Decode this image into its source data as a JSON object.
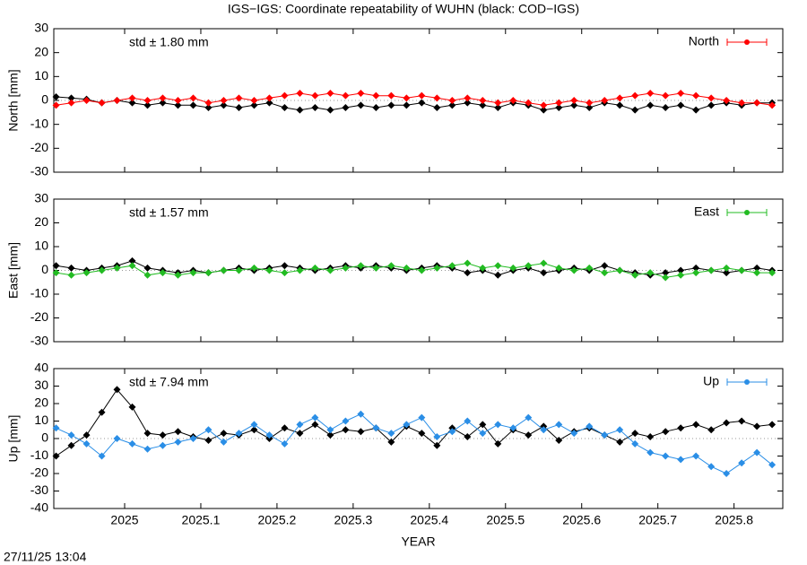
{
  "title": "IGS−IGS: Coordinate repeatability of WUHN (black: COD−IGS)",
  "footer": "27/11/25 13:04",
  "chart_data": [
    {
      "type": "line",
      "ylabel": "North [mm]",
      "annotation": "std ± 1.80 mm",
      "xlim": [
        2024.907,
        2025.864
      ],
      "xticks": [
        2025,
        2025.1,
        2025.2,
        2025.3,
        2025.4,
        2025.5,
        2025.6,
        2025.7,
        2025.8
      ],
      "ylim": [
        -30,
        30
      ],
      "yticks": [
        -30,
        -20,
        -10,
        0,
        10,
        20,
        30
      ],
      "x": [
        2024.91,
        2024.93,
        2024.95,
        2024.97,
        2024.99,
        2025.01,
        2025.03,
        2025.05,
        2025.07,
        2025.09,
        2025.11,
        2025.13,
        2025.15,
        2025.17,
        2025.19,
        2025.21,
        2025.23,
        2025.25,
        2025.27,
        2025.29,
        2025.31,
        2025.33,
        2025.35,
        2025.37,
        2025.39,
        2025.41,
        2025.43,
        2025.45,
        2025.47,
        2025.49,
        2025.51,
        2025.53,
        2025.55,
        2025.57,
        2025.59,
        2025.61,
        2025.63,
        2025.65,
        2025.67,
        2025.69,
        2025.71,
        2025.73,
        2025.75,
        2025.77,
        2025.79,
        2025.81,
        2025.83,
        2025.85
      ],
      "series": [
        {
          "color": "#000000",
          "values": [
            1.5,
            1,
            0.5,
            -1,
            0,
            -1,
            -2,
            -1,
            -2,
            -2,
            -3,
            -2,
            -3,
            -2,
            -1,
            -3,
            -4,
            -3,
            -4,
            -3,
            -2,
            -3,
            -2,
            -2,
            -1,
            -3,
            -2,
            -1,
            -2,
            -3,
            -1,
            -2,
            -4,
            -3,
            -2,
            -3,
            -1,
            -2,
            -4,
            -2,
            -3,
            -2,
            -4,
            -2,
            -1,
            -2,
            -1,
            -1
          ]
        },
        {
          "name": "North",
          "color": "#ff0000",
          "values": [
            -2,
            -1,
            0,
            -1,
            0,
            1,
            0,
            1,
            0,
            1,
            -1,
            0,
            1,
            0,
            1,
            2,
            3,
            2,
            3,
            2,
            3,
            2,
            2,
            1,
            2,
            1,
            0,
            1,
            0,
            -1,
            0,
            -1,
            -2,
            -1,
            0,
            -1,
            0,
            1,
            2,
            3,
            2,
            3,
            2,
            1,
            0,
            -1,
            -1,
            -2
          ]
        }
      ]
    },
    {
      "type": "line",
      "ylabel": "East [mm]",
      "annotation": "std ± 1.57 mm",
      "xlim": [
        2024.907,
        2025.864
      ],
      "xticks": [
        2025,
        2025.1,
        2025.2,
        2025.3,
        2025.4,
        2025.5,
        2025.6,
        2025.7,
        2025.8
      ],
      "ylim": [
        -30,
        30
      ],
      "yticks": [
        -30,
        -20,
        -10,
        0,
        10,
        20,
        30
      ],
      "x": [
        2024.91,
        2024.93,
        2024.95,
        2024.97,
        2024.99,
        2025.01,
        2025.03,
        2025.05,
        2025.07,
        2025.09,
        2025.11,
        2025.13,
        2025.15,
        2025.17,
        2025.19,
        2025.21,
        2025.23,
        2025.25,
        2025.27,
        2025.29,
        2025.31,
        2025.33,
        2025.35,
        2025.37,
        2025.39,
        2025.41,
        2025.43,
        2025.45,
        2025.47,
        2025.49,
        2025.51,
        2025.53,
        2025.55,
        2025.57,
        2025.59,
        2025.61,
        2025.63,
        2025.65,
        2025.67,
        2025.69,
        2025.71,
        2025.73,
        2025.75,
        2025.77,
        2025.79,
        2025.81,
        2025.83,
        2025.85
      ],
      "series": [
        {
          "color": "#000000",
          "values": [
            2,
            1,
            0,
            1,
            2,
            4,
            1,
            0,
            -1,
            0,
            -1,
            0,
            1,
            0,
            1,
            2,
            1,
            0,
            1,
            2,
            1,
            2,
            1,
            0,
            1,
            2,
            1,
            -1,
            0,
            -2,
            0,
            1,
            -1,
            0,
            1,
            0,
            2,
            0,
            -1,
            -2,
            -1,
            0,
            1,
            0,
            -1,
            0,
            1,
            0
          ]
        },
        {
          "name": "East",
          "color": "#22bb22",
          "values": [
            -1,
            -2,
            -1,
            0,
            1,
            2,
            -2,
            -1,
            -2,
            -1,
            -1,
            0,
            0,
            1,
            0,
            -1,
            0,
            1,
            0,
            1,
            2,
            1,
            2,
            1,
            0,
            1,
            2,
            3,
            1,
            2,
            1,
            2,
            3,
            1,
            0,
            1,
            -1,
            0,
            -2,
            -1,
            -3,
            -2,
            -1,
            0,
            1,
            0,
            -1,
            -1
          ]
        }
      ]
    },
    {
      "type": "line",
      "ylabel": "Up [mm]",
      "annotation": "std ± 7.94 mm",
      "xlabel": "YEAR",
      "xlim": [
        2024.907,
        2025.864
      ],
      "xticks": [
        2025,
        2025.1,
        2025.2,
        2025.3,
        2025.4,
        2025.5,
        2025.6,
        2025.7,
        2025.8
      ],
      "ylim": [
        -40,
        40
      ],
      "yticks": [
        -40,
        -30,
        -20,
        -10,
        0,
        10,
        20,
        30,
        40
      ],
      "x": [
        2024.91,
        2024.93,
        2024.95,
        2024.97,
        2024.99,
        2025.01,
        2025.03,
        2025.05,
        2025.07,
        2025.09,
        2025.11,
        2025.13,
        2025.15,
        2025.17,
        2025.19,
        2025.21,
        2025.23,
        2025.25,
        2025.27,
        2025.29,
        2025.31,
        2025.33,
        2025.35,
        2025.37,
        2025.39,
        2025.41,
        2025.43,
        2025.45,
        2025.47,
        2025.49,
        2025.51,
        2025.53,
        2025.55,
        2025.57,
        2025.59,
        2025.61,
        2025.63,
        2025.65,
        2025.67,
        2025.69,
        2025.71,
        2025.73,
        2025.75,
        2025.77,
        2025.79,
        2025.81,
        2025.83,
        2025.85
      ],
      "series": [
        {
          "color": "#000000",
          "values": [
            -10,
            -4,
            2,
            15,
            28,
            18,
            3,
            2,
            4,
            1,
            -1,
            3,
            2,
            5,
            0,
            6,
            3,
            8,
            2,
            5,
            4,
            6,
            -2,
            7,
            3,
            -4,
            6,
            1,
            8,
            -3,
            5,
            2,
            7,
            -1,
            4,
            6,
            2,
            -2,
            3,
            1,
            4,
            6,
            8,
            5,
            9,
            10,
            7,
            8
          ]
        },
        {
          "name": "Up",
          "color": "#2a8ee6",
          "values": [
            6,
            2,
            -3,
            -10,
            0,
            -3,
            -6,
            -4,
            -2,
            0,
            5,
            -2,
            3,
            8,
            2,
            -3,
            8,
            12,
            5,
            10,
            14,
            6,
            3,
            8,
            12,
            1,
            4,
            10,
            3,
            8,
            6,
            12,
            5,
            8,
            3,
            7,
            2,
            5,
            -3,
            -8,
            -10,
            -12,
            -10,
            -16,
            -20,
            -14,
            -8,
            -15
          ]
        }
      ]
    }
  ]
}
